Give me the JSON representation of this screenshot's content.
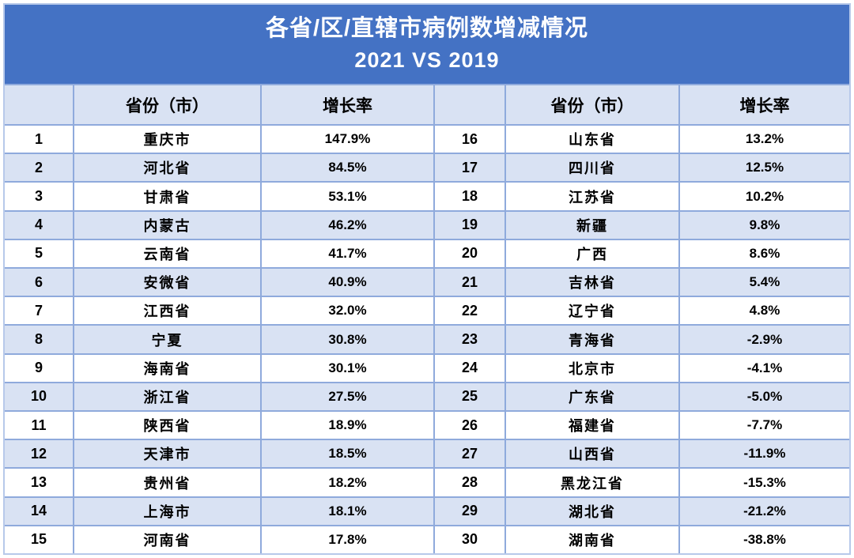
{
  "title": {
    "line1": "各省/区/直辖市病例数增减情况",
    "line2": "2021 VS 2019"
  },
  "table": {
    "headers": {
      "rank": "",
      "province": "省份（市）",
      "rate": "增长率"
    },
    "left_rows": [
      {
        "rank": "1",
        "province": "重庆市",
        "rate": "147.9%"
      },
      {
        "rank": "2",
        "province": "河北省",
        "rate": "84.5%"
      },
      {
        "rank": "3",
        "province": "甘肃省",
        "rate": "53.1%"
      },
      {
        "rank": "4",
        "province": "内蒙古",
        "rate": "46.2%"
      },
      {
        "rank": "5",
        "province": "云南省",
        "rate": "41.7%"
      },
      {
        "rank": "6",
        "province": "安微省",
        "rate": "40.9%"
      },
      {
        "rank": "7",
        "province": "江西省",
        "rate": "32.0%"
      },
      {
        "rank": "8",
        "province": "宁夏",
        "rate": "30.8%"
      },
      {
        "rank": "9",
        "province": "海南省",
        "rate": "30.1%"
      },
      {
        "rank": "10",
        "province": "浙江省",
        "rate": "27.5%"
      },
      {
        "rank": "11",
        "province": "陕西省",
        "rate": "18.9%"
      },
      {
        "rank": "12",
        "province": "天津市",
        "rate": "18.5%"
      },
      {
        "rank": "13",
        "province": "贵州省",
        "rate": "18.2%"
      },
      {
        "rank": "14",
        "province": "上海市",
        "rate": "18.1%"
      },
      {
        "rank": "15",
        "province": "河南省",
        "rate": "17.8%"
      }
    ],
    "right_rows": [
      {
        "rank": "16",
        "province": "山东省",
        "rate": "13.2%"
      },
      {
        "rank": "17",
        "province": "四川省",
        "rate": "12.5%"
      },
      {
        "rank": "18",
        "province": "江苏省",
        "rate": "10.2%"
      },
      {
        "rank": "19",
        "province": "新疆",
        "rate": "9.8%"
      },
      {
        "rank": "20",
        "province": "广西",
        "rate": "8.6%"
      },
      {
        "rank": "21",
        "province": "吉林省",
        "rate": "5.4%"
      },
      {
        "rank": "22",
        "province": "辽宁省",
        "rate": "4.8%"
      },
      {
        "rank": "23",
        "province": "青海省",
        "rate": "-2.9%"
      },
      {
        "rank": "24",
        "province": "北京市",
        "rate": "-4.1%"
      },
      {
        "rank": "25",
        "province": "广东省",
        "rate": "-5.0%"
      },
      {
        "rank": "26",
        "province": "福建省",
        "rate": "-7.7%"
      },
      {
        "rank": "27",
        "province": "山西省",
        "rate": "-11.9%"
      },
      {
        "rank": "28",
        "province": "黑龙江省",
        "rate": "-15.3%"
      },
      {
        "rank": "29",
        "province": "湖北省",
        "rate": "-21.2%"
      },
      {
        "rank": "30",
        "province": "湖南省",
        "rate": "-38.8%"
      }
    ]
  },
  "colors": {
    "banner_blue": "#4472c4",
    "band_light_blue": "#d9e2f3",
    "border_blue": "#8faadc",
    "outer_border": "#b7c9ea",
    "title_text": "#ffffff",
    "body_text": "#000000"
  }
}
